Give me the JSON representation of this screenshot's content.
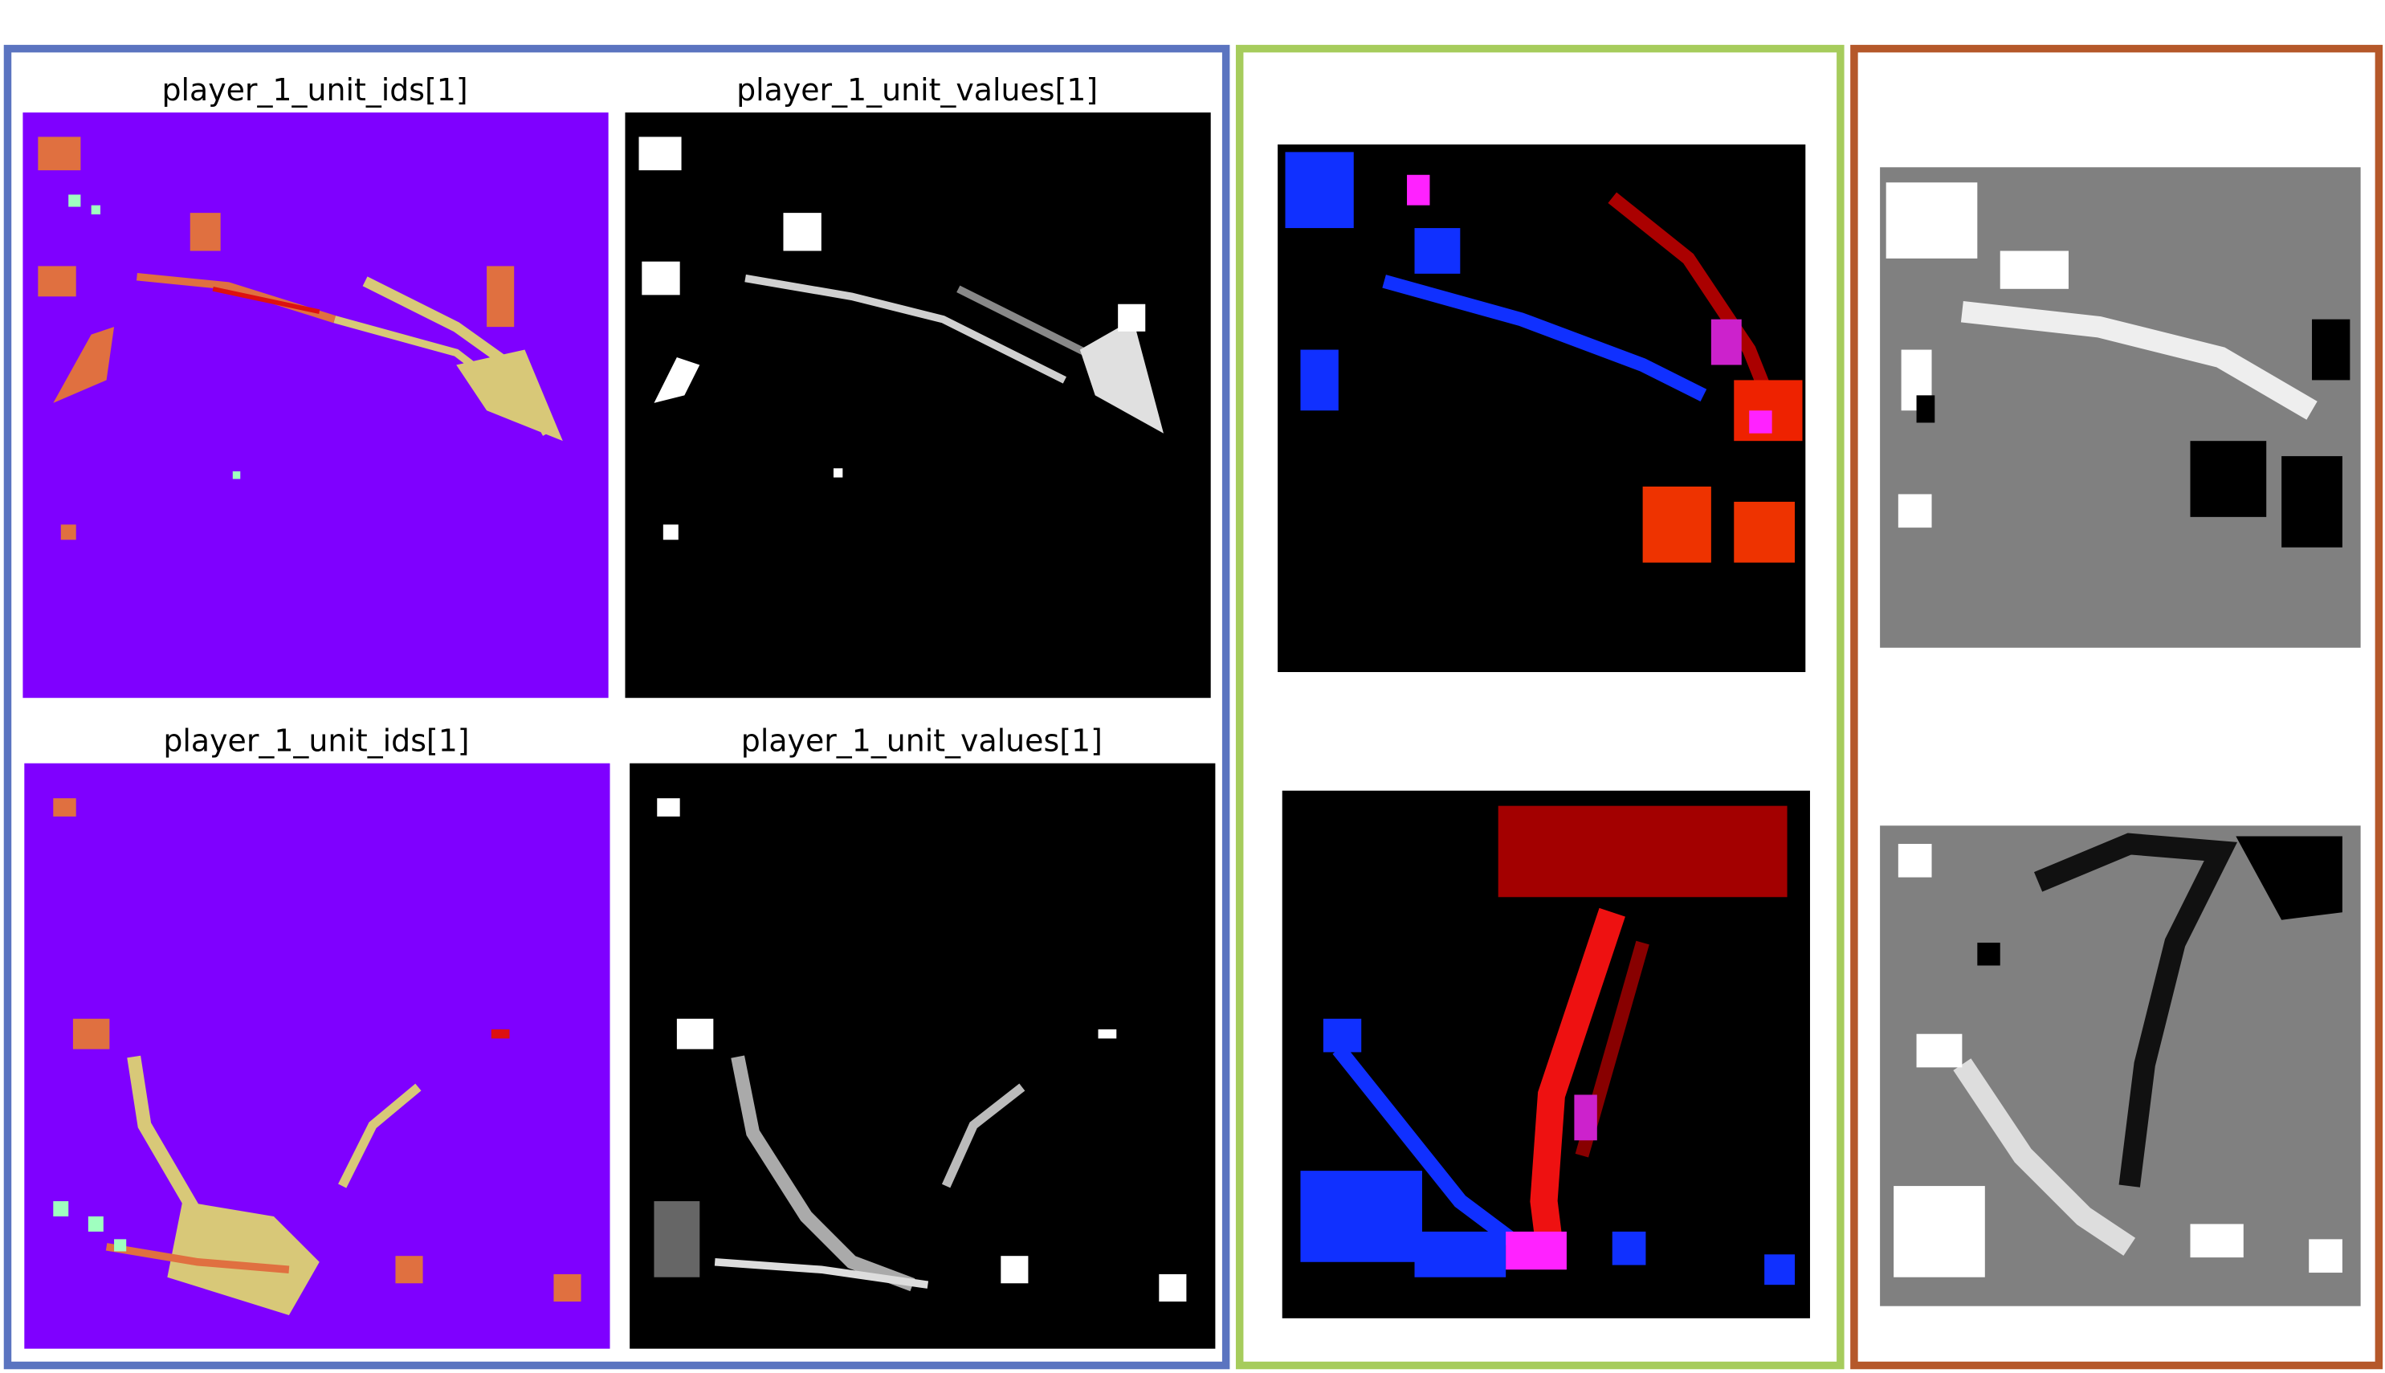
{
  "panels": [
    {
      "title": "player_1_unit_ids[1]"
    },
    {
      "title": "player_1_unit_values[1]"
    },
    {
      "title": "player_1_unit_ids[1]"
    },
    {
      "title": "player_1_unit_values[1]"
    }
  ]
}
